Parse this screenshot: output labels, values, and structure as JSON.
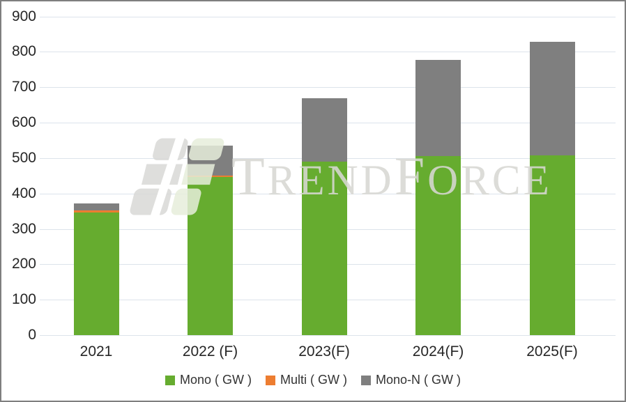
{
  "chart_data": {
    "type": "bar",
    "stacked": true,
    "title": "",
    "xlabel": "",
    "ylabel": "",
    "categories": [
      "2021",
      "2022 (F)",
      "2023(F)",
      "2024(F)",
      "2025(F)"
    ],
    "series": [
      {
        "name": "Mono ( GW )",
        "color": "#66AC2F",
        "values": [
          347,
          446,
          489,
          505,
          508
        ]
      },
      {
        "name": "Multi ( GW )",
        "color": "#ED7D31",
        "values": [
          6,
          4,
          0,
          0,
          0
        ]
      },
      {
        "name": "Mono-N ( GW )",
        "color": "#7F7F7F",
        "values": [
          18,
          85,
          179,
          273,
          320
        ]
      }
    ],
    "totals": [
      371,
      535,
      668,
      778,
      828
    ],
    "ylim": [
      0,
      900
    ],
    "yticks": [
      0,
      100,
      200,
      300,
      400,
      500,
      600,
      700,
      800,
      900
    ],
    "grid": true,
    "grid_color": "#dce3eb",
    "frame_border_color": "#7f7f7f",
    "legend_position": "bottom"
  },
  "watermark": {
    "text": "TRENDFORCE",
    "large_letter_indices": [
      0,
      5
    ],
    "logo_gray": "#d9d9d7",
    "logo_green": "#e7eedb"
  }
}
